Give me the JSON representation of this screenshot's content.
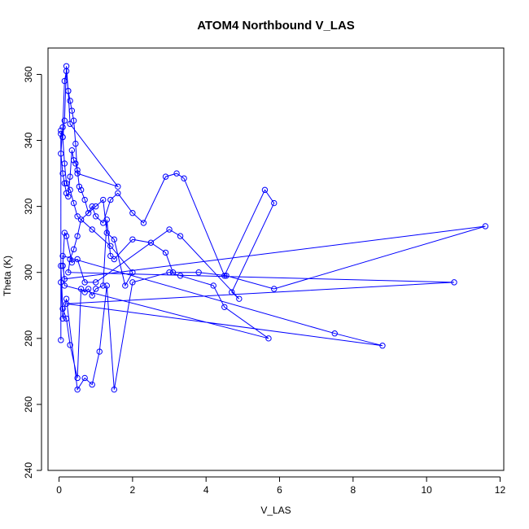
{
  "chart_data": {
    "type": "line",
    "title": "ATOM4 Northbound V_LAS",
    "xlabel": "V_LAS",
    "ylabel": "Theta (K)",
    "xlim": [
      -0.3,
      12.1
    ],
    "ylim": [
      240,
      368
    ],
    "xticks": [
      0,
      2,
      4,
      6,
      8,
      10,
      12
    ],
    "yticks": [
      240,
      260,
      280,
      300,
      320,
      340,
      360
    ],
    "grid": false,
    "legend": "none",
    "colors": {
      "series": "#0000ff",
      "axis": "#000000",
      "background": "#ffffff"
    },
    "marker": "open-circle",
    "series": [
      {
        "x": [
          0.05,
          0.1,
          0.15,
          0.2,
          0.25,
          0.3,
          0.35,
          0.4,
          0.45,
          0.5,
          1.6,
          0.3,
          0.25,
          0.2,
          0.15,
          0.1,
          0.05,
          0.1,
          0.15,
          0.2,
          0.25,
          0.3,
          0.35,
          0.4,
          0.45,
          0.5,
          0.55,
          0.6,
          0.7,
          0.8,
          0.9,
          1.0,
          1.2,
          1.4,
          1.6,
          2.0,
          2.3,
          2.9,
          3.2,
          3.4,
          4.5,
          5.6,
          5.85,
          4.7,
          4.9,
          3.3,
          3.0,
          1.0,
          0.7,
          0.5,
          0.35,
          0.2,
          0.15,
          0.1,
          0.1,
          0.15,
          11.6,
          5.85,
          4.55,
          3.8,
          3.1,
          2.9,
          2.5,
          2.0,
          1.5,
          1.4,
          1.3,
          1.2,
          1.0,
          0.9,
          0.8,
          0.7,
          0.6,
          0.5,
          0.3,
          0.2,
          0.1,
          0.05,
          0.05,
          0.1,
          0.2,
          0.5,
          0.7,
          0.9,
          1.1,
          1.3,
          1.5,
          2.0,
          3.0,
          3.3,
          4.2,
          4.5,
          5.7,
          0.15,
          0.1,
          7.5,
          8.8,
          0.2,
          10.75,
          0.25,
          0.3,
          0.4,
          0.5,
          0.6,
          1.0,
          1.2,
          1.3,
          1.5,
          1.8,
          2.0,
          1.4,
          0.9,
          0.5,
          0.4,
          0.3,
          0.2,
          0.15,
          0.1,
          0.05,
          0.05
        ],
        "y": [
          343,
          341,
          346,
          362.5,
          355,
          352,
          349,
          346,
          339,
          330,
          326,
          345,
          355,
          361,
          358,
          344,
          336,
          330,
          327,
          324,
          323,
          329,
          337,
          334,
          333,
          331,
          326,
          325,
          322,
          318,
          320,
          317,
          315,
          322,
          324,
          318,
          315,
          329,
          330,
          328.5,
          299,
          325,
          321,
          294,
          292,
          311,
          313,
          297,
          297,
          304,
          303,
          311,
          312,
          302,
          302,
          298,
          314,
          295,
          299,
          300,
          300,
          306,
          309,
          310,
          304,
          305,
          316,
          296,
          295,
          293,
          295,
          294,
          295,
          268,
          278,
          286,
          289,
          302,
          297,
          286,
          292,
          264.5,
          268,
          266,
          276,
          296,
          264.5,
          297,
          300,
          299,
          296,
          289.5,
          280,
          296,
          305,
          281.5,
          277.8,
          290.5,
          297,
          300,
          304,
          307,
          311,
          316,
          320,
          322,
          312,
          310,
          296,
          300,
          308,
          313,
          317,
          321,
          325,
          327,
          333,
          341,
          342,
          279.5
        ]
      }
    ]
  }
}
